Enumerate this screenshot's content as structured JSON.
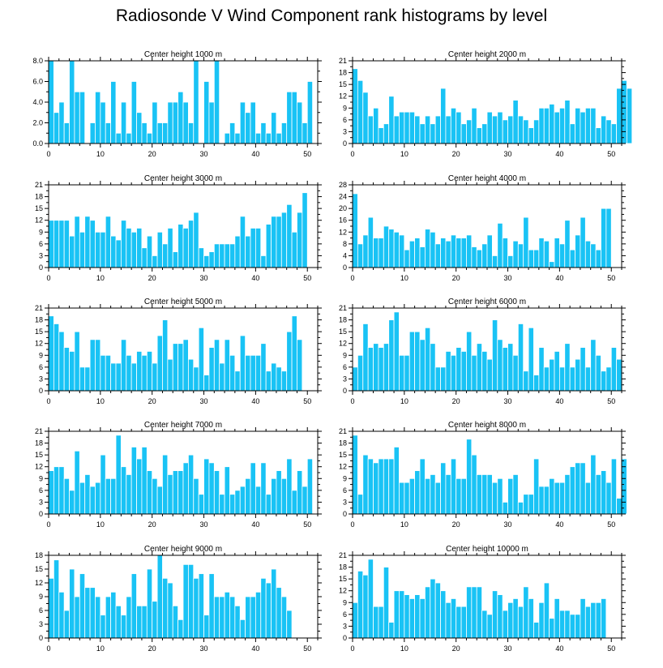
{
  "title": "Radiosonde V Wind Component rank histograms by level",
  "colors": {
    "bar": "#19c3f5",
    "bar_edge": "#ffffff",
    "axis": "#000000"
  },
  "chart_data": [
    {
      "type": "bar",
      "title": "Center height 1000 m",
      "ylim": [
        0,
        8
      ],
      "yticks": [
        0,
        2,
        4,
        6,
        8
      ],
      "ytick_labels": [
        "0.0",
        "2.0",
        "4.0",
        "6.0",
        "8.0"
      ],
      "xlim": [
        0,
        52
      ],
      "xticks": [
        0,
        10,
        20,
        30,
        40,
        50
      ],
      "values": [
        8,
        3,
        4,
        2,
        8,
        5,
        5,
        0,
        2,
        5,
        4,
        2,
        6,
        1,
        4,
        1,
        6,
        3,
        2,
        1,
        4,
        2,
        2,
        4,
        4,
        5,
        4,
        2,
        8,
        0,
        6,
        4,
        8,
        0,
        1,
        2,
        1,
        4,
        3,
        4,
        1,
        2,
        1,
        3,
        1,
        2,
        5,
        5,
        4,
        2,
        6
      ]
    },
    {
      "type": "bar",
      "title": "Center height 2000 m",
      "ylim": [
        0,
        21
      ],
      "yticks": [
        0,
        3,
        6,
        9,
        12,
        15,
        18,
        21
      ],
      "ytick_labels": [
        "0",
        "3",
        "6",
        "9",
        "12",
        "15",
        "18",
        "21"
      ],
      "xlim": [
        0,
        52
      ],
      "xticks": [
        0,
        10,
        20,
        30,
        40,
        50
      ],
      "values": [
        19,
        16,
        13,
        7,
        9,
        4,
        5,
        12,
        7,
        8,
        8,
        8,
        7,
        5,
        7,
        5,
        7,
        14,
        7,
        9,
        8,
        5,
        6,
        9,
        4,
        5,
        8,
        7,
        8,
        6,
        7,
        11,
        7,
        6,
        4,
        6,
        9,
        9,
        10,
        8,
        9,
        11,
        5,
        9,
        8,
        9,
        9,
        4,
        7,
        6,
        5,
        14,
        16,
        14
      ]
    },
    {
      "type": "bar",
      "title": "Center height 3000 m",
      "ylim": [
        0,
        21
      ],
      "yticks": [
        0,
        3,
        6,
        9,
        12,
        15,
        18,
        21
      ],
      "ytick_labels": [
        "0",
        "3",
        "6",
        "9",
        "12",
        "15",
        "18",
        "21"
      ],
      "xlim": [
        0,
        52
      ],
      "xticks": [
        0,
        10,
        20,
        30,
        40,
        50
      ],
      "values": [
        12,
        12,
        12,
        12,
        8,
        13,
        9,
        13,
        12,
        9,
        9,
        13,
        8,
        7,
        12,
        10,
        9,
        10,
        5,
        8,
        3,
        9,
        6,
        10,
        4,
        11,
        10,
        12,
        14,
        5,
        3,
        4,
        6,
        6,
        6,
        6,
        8,
        13,
        8,
        10,
        10,
        3,
        11,
        13,
        13,
        14,
        16,
        9,
        14,
        19
      ]
    },
    {
      "type": "bar",
      "title": "Center height 4000 m",
      "ylim": [
        0,
        28
      ],
      "yticks": [
        0,
        4,
        8,
        12,
        16,
        20,
        24,
        28
      ],
      "ytick_labels": [
        "0",
        "4",
        "8",
        "12",
        "16",
        "20",
        "24",
        "28"
      ],
      "xlim": [
        0,
        52
      ],
      "xticks": [
        0,
        10,
        20,
        30,
        40,
        50
      ],
      "values": [
        25,
        8,
        11,
        17,
        10,
        10,
        14,
        13,
        12,
        11,
        6,
        9,
        10,
        7,
        13,
        12,
        8,
        10,
        9,
        11,
        10,
        10,
        11,
        7,
        6,
        8,
        11,
        4,
        15,
        10,
        4,
        9,
        8,
        17,
        6,
        6,
        10,
        9,
        2,
        10,
        8,
        16,
        6,
        11,
        17,
        9,
        8,
        6,
        20,
        20
      ]
    },
    {
      "type": "bar",
      "title": "Center height 5000 m",
      "ylim": [
        0,
        21
      ],
      "yticks": [
        0,
        3,
        6,
        9,
        12,
        15,
        18,
        21
      ],
      "ytick_labels": [
        "0",
        "3",
        "6",
        "9",
        "12",
        "15",
        "18",
        "21"
      ],
      "xlim": [
        0,
        52
      ],
      "xticks": [
        0,
        10,
        20,
        30,
        40,
        50
      ],
      "values": [
        19,
        17,
        15,
        11,
        10,
        15,
        6,
        6,
        13,
        13,
        9,
        9,
        7,
        7,
        13,
        9,
        7,
        10,
        9,
        10,
        7,
        14,
        18,
        8,
        12,
        12,
        13,
        8,
        6,
        16,
        4,
        11,
        13,
        7,
        13,
        9,
        5,
        14,
        9,
        9,
        9,
        12,
        5,
        7,
        6,
        5,
        15,
        19,
        13
      ]
    },
    {
      "type": "bar",
      "title": "Center height 6000 m",
      "ylim": [
        0,
        21
      ],
      "yticks": [
        0,
        3,
        6,
        9,
        12,
        15,
        18,
        21
      ],
      "ytick_labels": [
        "0",
        "3",
        "6",
        "9",
        "12",
        "15",
        "18",
        "21"
      ],
      "xlim": [
        0,
        52
      ],
      "xticks": [
        0,
        10,
        20,
        30,
        40,
        50
      ],
      "values": [
        6,
        9,
        17,
        11,
        12,
        11,
        12,
        18,
        20,
        9,
        9,
        15,
        15,
        13,
        16,
        12,
        6,
        6,
        10,
        9,
        11,
        10,
        15,
        9,
        12,
        10,
        8,
        18,
        13,
        11,
        12,
        9,
        17,
        5,
        16,
        4,
        11,
        6,
        8,
        10,
        6,
        12,
        6,
        8,
        11,
        6,
        13,
        9,
        5,
        6,
        11,
        8
      ]
    },
    {
      "type": "bar",
      "title": "Center height 7000 m",
      "ylim": [
        0,
        21
      ],
      "yticks": [
        0,
        3,
        6,
        9,
        12,
        15,
        18,
        21
      ],
      "ytick_labels": [
        "0",
        "3",
        "6",
        "9",
        "12",
        "15",
        "18",
        "21"
      ],
      "xlim": [
        0,
        52
      ],
      "xticks": [
        0,
        10,
        20,
        30,
        40,
        50
      ],
      "values": [
        11,
        12,
        12,
        9,
        6,
        16,
        8,
        10,
        7,
        8,
        15,
        9,
        9,
        20,
        12,
        10,
        17,
        14,
        17,
        11,
        9,
        7,
        15,
        10,
        11,
        11,
        13,
        15,
        9,
        5,
        14,
        13,
        11,
        5,
        12,
        5,
        6,
        7,
        9,
        13,
        7,
        13,
        5,
        9,
        11,
        9,
        14,
        6,
        11,
        7,
        14
      ]
    },
    {
      "type": "bar",
      "title": "Center height 8000 m",
      "ylim": [
        0,
        21
      ],
      "yticks": [
        0,
        3,
        6,
        9,
        12,
        15,
        18,
        21
      ],
      "ytick_labels": [
        "0",
        "3",
        "6",
        "9",
        "12",
        "15",
        "18",
        "21"
      ],
      "xlim": [
        0,
        52
      ],
      "xticks": [
        0,
        10,
        20,
        30,
        40,
        50
      ],
      "values": [
        20,
        5,
        15,
        14,
        13,
        14,
        14,
        14,
        17,
        8,
        8,
        9,
        11,
        14,
        9,
        10,
        8,
        13,
        10,
        14,
        9,
        9,
        19,
        15,
        10,
        10,
        10,
        8,
        9,
        3,
        9,
        10,
        3,
        5,
        5,
        14,
        7,
        7,
        9,
        8,
        8,
        10,
        12,
        13,
        13,
        8,
        15,
        10,
        11,
        8,
        14,
        4,
        14
      ]
    },
    {
      "type": "bar",
      "title": "Center height 9000 m",
      "ylim": [
        0,
        18
      ],
      "yticks": [
        0,
        3,
        6,
        9,
        12,
        15,
        18
      ],
      "ytick_labels": [
        "0",
        "3",
        "6",
        "9",
        "12",
        "15",
        "18"
      ],
      "xlim": [
        0,
        52
      ],
      "xticks": [
        0,
        10,
        20,
        30,
        40,
        50
      ],
      "values": [
        13,
        17,
        10,
        6,
        15,
        9,
        14,
        11,
        11,
        9,
        5,
        9,
        10,
        7,
        5,
        9,
        14,
        7,
        7,
        15,
        8,
        18,
        13,
        12,
        7,
        4,
        16,
        16,
        13,
        14,
        5,
        14,
        9,
        9,
        10,
        9,
        7,
        4,
        9,
        9,
        10,
        13,
        12,
        15,
        11,
        9,
        6
      ]
    },
    {
      "type": "bar",
      "title": "Center height 10000 m",
      "ylim": [
        0,
        21
      ],
      "yticks": [
        0,
        3,
        6,
        9,
        12,
        15,
        18,
        21
      ],
      "ytick_labels": [
        "0",
        "3",
        "6",
        "9",
        "12",
        "15",
        "18",
        "21"
      ],
      "xlim": [
        0,
        52
      ],
      "xticks": [
        0,
        10,
        20,
        30,
        40,
        50
      ],
      "values": [
        9,
        17,
        16,
        20,
        8,
        8,
        18,
        4,
        12,
        12,
        11,
        10,
        11,
        10,
        13,
        15,
        14,
        12,
        9,
        10,
        8,
        8,
        13,
        13,
        13,
        7,
        6,
        12,
        11,
        7,
        9,
        10,
        8,
        13,
        10,
        4,
        9,
        14,
        5,
        10,
        7,
        7,
        6,
        6,
        10,
        8,
        9,
        9,
        10
      ]
    }
  ]
}
